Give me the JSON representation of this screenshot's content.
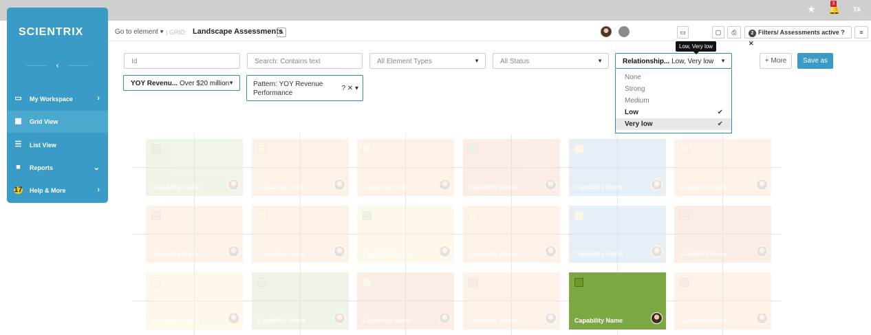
{
  "topbar": {
    "notification_count": "3",
    "user_initials": "TA"
  },
  "sidebar": {
    "logo": "SCIENTRIX",
    "collapse_glyph": "‹",
    "items": [
      {
        "label": "My Workspace",
        "icon": "monitor-icon",
        "caret": "›"
      },
      {
        "label": "Grid View",
        "icon": "grid-icon",
        "caret": ""
      },
      {
        "label": "List View",
        "icon": "list-icon",
        "caret": ""
      },
      {
        "label": "Reports",
        "icon": "briefcase-icon",
        "caret": "⌄"
      },
      {
        "label": "Help & More",
        "icon": "help-badge",
        "badge": "17",
        "caret": "›"
      }
    ]
  },
  "header": {
    "goto": "Go to element ▾",
    "grid_label": "| GRID:",
    "title": "Landscape Assessments",
    "filters_count": "2",
    "filters_label": "Filters/ Assessments active"
  },
  "filters": {
    "id_placeholder": "Id",
    "search_placeholder": "Search: Contains text",
    "element_types": "All Element Types",
    "status": "All Status",
    "relationship_label": "Relationship...",
    "relationship_value": "Low, Very low",
    "more": "+ More",
    "save_as": "Save as",
    "tooltip": "Low, Very low",
    "yoy_label": "YOY Revenu...",
    "yoy_value": "Over $20 million",
    "pattern_text": "Pattern: YOY Revenue Performance",
    "pattern_controls": "? ✕ ▾"
  },
  "relationship_options": [
    {
      "label": "None",
      "selected": false
    },
    {
      "label": "Strong",
      "selected": false
    },
    {
      "label": "Medium",
      "selected": false
    },
    {
      "label": "Low",
      "selected": true
    },
    {
      "label": "Very low",
      "selected": true
    }
  ],
  "colors": {
    "accent": "#3a9cc6",
    "green": "#d6e5c6",
    "orange": "#fbe0c6",
    "salmon": "#f8cfc1",
    "blue": "#b4d1e6",
    "yellow": "#fdf0cf",
    "active_green": "#7ca843"
  },
  "cards": [
    [
      {
        "name": "Capability Name",
        "bg": "#dde8cf",
        "sq": "#cfe0bb"
      },
      {
        "name": "Capability Name",
        "bg": "#fbe3cd",
        "sq": "#f9eac0"
      },
      {
        "name": "Capability Name",
        "bg": "#fbe3cd",
        "sq": "#fbefc8"
      },
      {
        "name": "Capability Name",
        "bg": "#f8d6c8",
        "sq": "#d6e6c4"
      },
      {
        "name": "Capability Name",
        "bg": "#c8dcea",
        "sq": "#fbf0c8"
      },
      {
        "name": "Capability Name",
        "bg": "#fbe3cd",
        "sq": "#fbefc8"
      }
    ],
    [
      {
        "name": "Capability Name",
        "bg": "#fbe3cd",
        "sq": "#f6d4cc"
      },
      {
        "name": "Capability Name",
        "bg": "#fbe3cd",
        "sq": "#fbefc8"
      },
      {
        "name": "Capability Name",
        "bg": "#fdf0d2",
        "sq": "#d6e6c4"
      },
      {
        "name": "Capability Name",
        "bg": "#fbe3cd",
        "sq": "#fbefc8"
      },
      {
        "name": "Capability Name",
        "bg": "#c8dcea",
        "sq": "#fbf0c8"
      },
      {
        "name": "Capability Name",
        "bg": "#f8d6c8",
        "sq": "#f6d4cc"
      }
    ],
    [
      {
        "name": "Capability Name",
        "bg": "#fdf0d2",
        "sq": "#fbefc8"
      },
      {
        "name": "Capability Name",
        "bg": "#dde8cf",
        "sq": "#d6e6c4"
      },
      {
        "name": "Capability Name",
        "bg": "#f8d6c8",
        "sq": "#fbefc8"
      },
      {
        "name": "Capability Name",
        "bg": "#fbe3cd",
        "sq": "#f6d4cc"
      },
      {
        "name": "Capability Name",
        "bg": "#7ca843",
        "sq": "#6f9a24",
        "active": true
      },
      {
        "name": "Capability Name",
        "bg": "#fbe3cd",
        "sq": "#f6d4cc"
      }
    ]
  ]
}
